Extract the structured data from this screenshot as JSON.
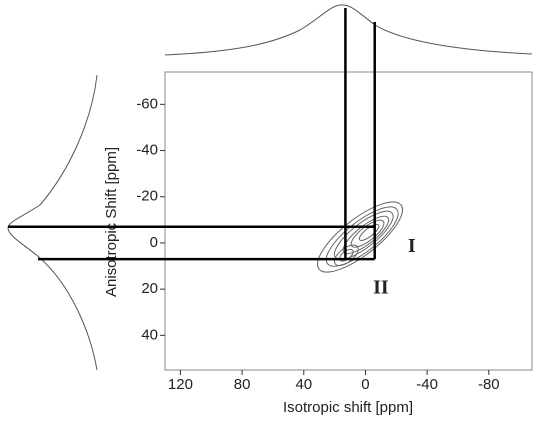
{
  "chart_data": {
    "type": "contour",
    "x_label": "Isotropic shift [ppm]",
    "y_label": "Anisotropic Shift [ppm]",
    "xlim": [
      130,
      -108
    ],
    "xticks": [
      120,
      80,
      40,
      0,
      -40,
      -80
    ],
    "ylim": [
      -74,
      55
    ],
    "yticks": [
      -60,
      -40,
      -20,
      0,
      20,
      40
    ],
    "guide_x": [
      13,
      -6
    ],
    "guide_y": [
      -7,
      7
    ],
    "annotations": [
      {
        "text": "I",
        "x": -30,
        "y": 2
      },
      {
        "text": "II",
        "x": -10,
        "y": 20
      }
    ]
  }
}
